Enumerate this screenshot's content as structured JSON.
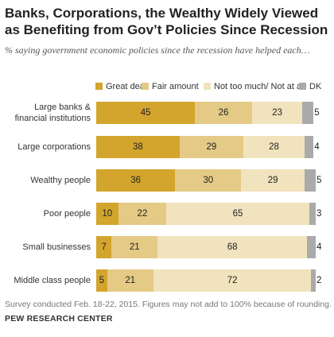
{
  "title": "Banks, Corporations, the Wealthy Widely Viewed as Benefiting from Gov’t Policies Since Recession",
  "subtitle": "% saying government economic policies since the recession have helped each…",
  "legend": [
    {
      "label": "Great deal",
      "color": "#d3a52c"
    },
    {
      "label": "Fair amount",
      "color": "#e4ca85"
    },
    {
      "label": "Not too much/ Not at all",
      "color": "#f1e3bd"
    },
    {
      "label": "DK",
      "color": "#aaaaaa"
    }
  ],
  "chart_data": {
    "type": "bar",
    "orientation": "horizontal",
    "stacked": true,
    "categories": [
      "Large banks & financial institutions",
      "Large corporations",
      "Wealthy people",
      "Poor people",
      "Small businesses",
      "Middle class people"
    ],
    "series": [
      {
        "name": "Great deal",
        "values": [
          45,
          38,
          36,
          10,
          7,
          5
        ]
      },
      {
        "name": "Fair amount",
        "values": [
          26,
          29,
          30,
          22,
          21,
          21
        ]
      },
      {
        "name": "Not too much/ Not at all",
        "values": [
          23,
          28,
          29,
          65,
          68,
          72
        ]
      },
      {
        "name": "DK",
        "values": [
          5,
          4,
          5,
          3,
          4,
          2
        ]
      }
    ],
    "title": "Banks, Corporations, the Wealthy Widely Viewed as Benefiting from Gov’t Policies Since Recession",
    "xlabel": "",
    "ylabel": "",
    "xlim": [
      0,
      100
    ]
  },
  "footnote": "Survey conducted Feb. 18-22, 2015. Figures may not add to 100% because of rounding.",
  "source": "PEW RESEARCH CENTER"
}
